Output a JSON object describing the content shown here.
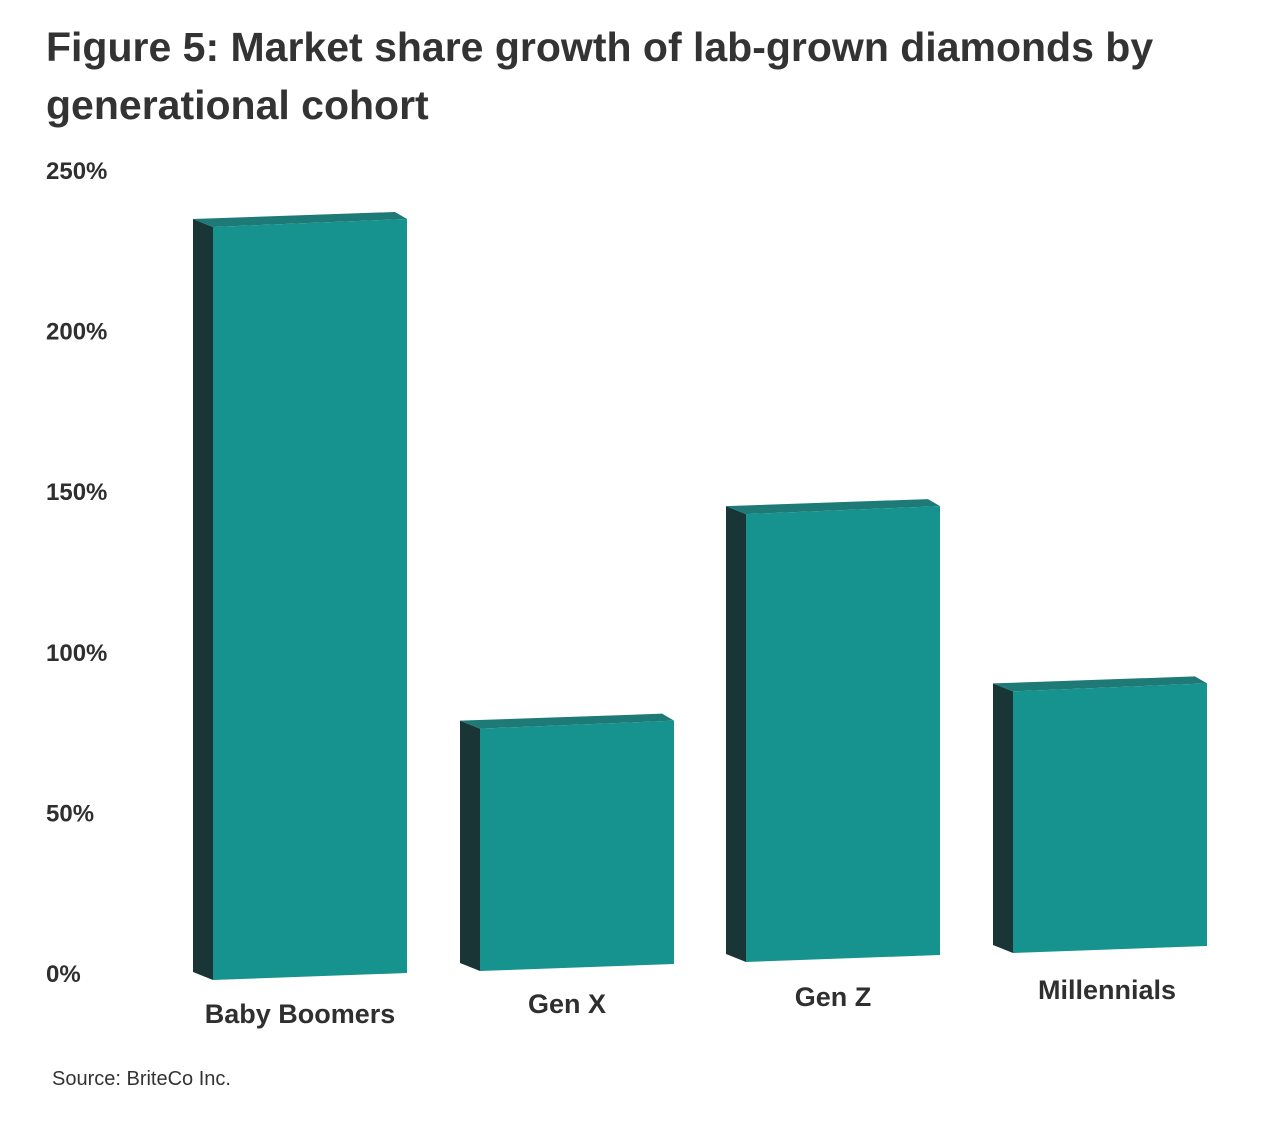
{
  "chart_data": {
    "type": "bar",
    "title": "Figure 5: Market share growth of lab-grown diamonds by generational cohort",
    "categories": [
      "Baby Boomers",
      "Gen X",
      "Gen Z",
      "Millennials"
    ],
    "values": [
      236,
      77,
      141,
      83
    ],
    "yticks": [
      "0%",
      "50%",
      "100%",
      "150%",
      "200%",
      "250%"
    ],
    "ylim": [
      0,
      250
    ],
    "xlabel": "",
    "ylabel": "",
    "grid": false,
    "bar_style": "3d",
    "colors": {
      "front": "#16938f",
      "side": "#1a3536"
    },
    "source": "Source: BriteCo Inc."
  }
}
